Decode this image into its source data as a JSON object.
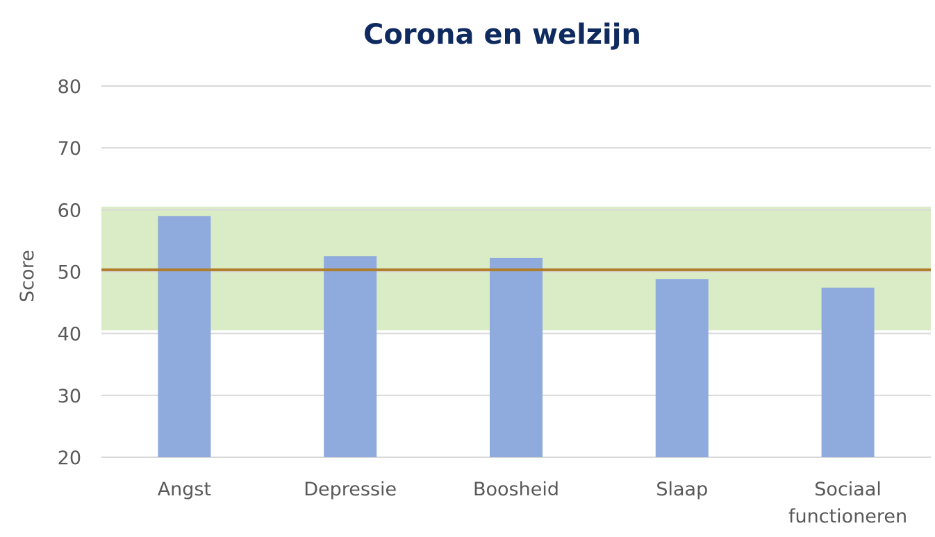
{
  "chart_data": {
    "type": "bar",
    "title": "Corona en welzijn",
    "xlabel": "",
    "ylabel": "Score",
    "ylim": [
      20,
      80
    ],
    "yticks": [
      20,
      30,
      40,
      50,
      60,
      70,
      80
    ],
    "grid": true,
    "categories": [
      [
        "Angst"
      ],
      [
        "Depressie"
      ],
      [
        "Boosheid"
      ],
      [
        "Slaap"
      ],
      [
        "Sociaal",
        "functioneren"
      ]
    ],
    "values": [
      59,
      52.5,
      52.2,
      48.8,
      47.4
    ],
    "reference_line": 50.3,
    "reference_band": [
      40.5,
      60.5
    ],
    "colors": {
      "bar": "#8faadc",
      "band": "#d9ecc5",
      "reference_line": "#b07c29",
      "title": "#0f2a5f",
      "grid": "#d9d9d9"
    }
  }
}
